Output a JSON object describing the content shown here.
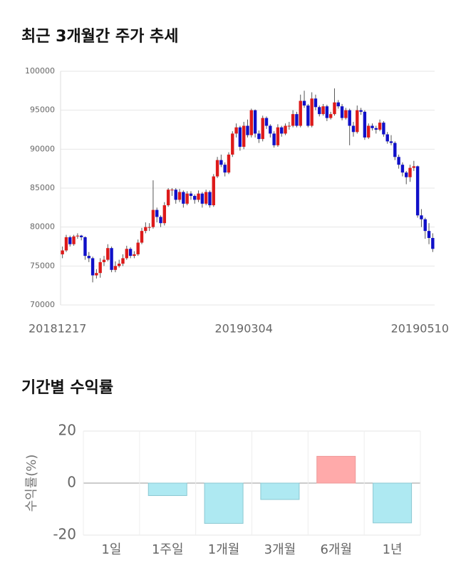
{
  "chart_data": [
    {
      "type": "candlestick",
      "title": "최근 3개월간 주가 추세",
      "categories": [
        "20181217",
        null,
        null,
        null,
        null,
        null,
        null,
        null,
        null,
        null,
        null,
        null,
        null,
        null,
        null,
        null,
        null,
        null,
        null,
        null,
        null,
        null,
        null,
        null,
        null,
        null,
        null,
        null,
        null,
        null,
        null,
        null,
        null,
        null,
        null,
        null,
        null,
        null,
        null,
        null,
        null,
        null,
        null,
        null,
        null,
        null,
        null,
        null,
        "20190304",
        null,
        null,
        null,
        null,
        null,
        null,
        null,
        null,
        null,
        null,
        null,
        null,
        null,
        null,
        null,
        null,
        null,
        null,
        null,
        null,
        null,
        null,
        null,
        null,
        null,
        null,
        null,
        null,
        null,
        null,
        null,
        null,
        null,
        null,
        null,
        null,
        null,
        null,
        null,
        null,
        null,
        null,
        null,
        null,
        null,
        null,
        null,
        null,
        null,
        "20190510"
      ],
      "open": [
        76500,
        77000,
        78700,
        77800,
        78800,
        78900,
        78700,
        76300,
        76000,
        73800,
        74100,
        75500,
        75800,
        77300,
        74500,
        75000,
        75300,
        76000,
        77200,
        76300,
        76500,
        78000,
        79500,
        80000,
        80000,
        82200,
        81300,
        80500,
        82800,
        84800,
        84800,
        83500,
        84500,
        83000,
        84300,
        84000,
        83500,
        84300,
        83000,
        84500,
        82800,
        86500,
        88600,
        88000,
        87000,
        89300,
        92000,
        92800,
        90300,
        93000,
        91800,
        95000,
        92000,
        91300,
        94000,
        93000,
        92000,
        90500,
        92800,
        92000,
        93000,
        93000,
        94500,
        93000,
        96200,
        95600,
        93000,
        96500,
        95400,
        94500,
        95500,
        94000,
        94500,
        96000,
        95500,
        94000,
        95000,
        93000,
        92200,
        95000,
        94800,
        91500,
        93000,
        92700,
        92500,
        93400,
        91900,
        91000,
        90800,
        89000,
        88000,
        87000,
        86400,
        87600,
        87800,
        81500,
        81000,
        79500,
        78600
      ],
      "high": [
        77500,
        79000,
        78900,
        79000,
        79200,
        79000,
        78800,
        76800,
        76200,
        74600,
        76000,
        76300,
        77800,
        77500,
        75600,
        75800,
        76500,
        77600,
        77400,
        76900,
        78400,
        79900,
        80600,
        80500,
        86000,
        82500,
        81500,
        83200,
        85000,
        85000,
        85000,
        84900,
        84700,
        84600,
        84600,
        84200,
        84700,
        84500,
        84800,
        84700,
        86800,
        89000,
        89300,
        88300,
        89600,
        92300,
        93300,
        93000,
        93500,
        93800,
        95200,
        95100,
        92400,
        94300,
        94200,
        93200,
        92300,
        93200,
        93000,
        93300,
        93500,
        95000,
        94800,
        97000,
        97500,
        95800,
        97300,
        97000,
        95600,
        95800,
        95700,
        94800,
        97800,
        96300,
        95800,
        95300,
        95200,
        93500,
        95600,
        95300,
        95000,
        93300,
        93300,
        93000,
        93800,
        93600,
        92200,
        91800,
        91000,
        89300,
        88300,
        87200,
        88000,
        88500,
        87900,
        82300,
        81200,
        80500,
        79200
      ],
      "low": [
        76000,
        76800,
        77500,
        77600,
        78500,
        78300,
        75800,
        75500,
        72900,
        73400,
        73500,
        75000,
        75600,
        74200,
        74200,
        74800,
        75000,
        75800,
        76000,
        76000,
        76300,
        77800,
        79200,
        79500,
        79800,
        80600,
        80000,
        80200,
        82600,
        84000,
        83000,
        83200,
        82500,
        82800,
        83500,
        83000,
        83200,
        82500,
        82800,
        82500,
        82600,
        86300,
        87700,
        86500,
        86800,
        89000,
        91500,
        89800,
        90000,
        91500,
        91500,
        91500,
        90800,
        91000,
        92600,
        91500,
        90200,
        90300,
        91600,
        91800,
        92500,
        92800,
        92800,
        92800,
        95300,
        92800,
        92800,
        95000,
        94200,
        94300,
        93600,
        93800,
        94300,
        95200,
        93700,
        93800,
        90500,
        91600,
        92000,
        94400,
        91200,
        91300,
        92400,
        92000,
        92300,
        91600,
        90700,
        90500,
        88600,
        87500,
        86500,
        85500,
        85800,
        87200,
        81200,
        80000,
        78500,
        77800,
        76800
      ],
      "close": [
        77000,
        78700,
        77800,
        78800,
        78900,
        78700,
        76300,
        76000,
        73800,
        74100,
        75500,
        75800,
        77300,
        74500,
        75000,
        75300,
        76000,
        77200,
        76300,
        76500,
        78000,
        79500,
        80000,
        80000,
        82200,
        81300,
        80500,
        82800,
        84800,
        84800,
        83500,
        84500,
        83000,
        84300,
        84000,
        83500,
        84300,
        83000,
        84500,
        82800,
        86500,
        88600,
        88000,
        87000,
        89300,
        92000,
        92800,
        90300,
        93000,
        91800,
        95000,
        92000,
        91300,
        94000,
        93000,
        92000,
        90500,
        92800,
        92000,
        93000,
        93000,
        94500,
        93000,
        96200,
        95600,
        93000,
        96500,
        95400,
        94500,
        95500,
        94000,
        94500,
        96000,
        95500,
        94000,
        95000,
        93000,
        92200,
        95000,
        94800,
        91500,
        93000,
        92700,
        92500,
        93400,
        91900,
        91000,
        90800,
        89000,
        88000,
        87000,
        86400,
        87600,
        87800,
        81500,
        81000,
        79500,
        78600,
        77200
      ],
      "up_color": "#dd1a1a",
      "down_color": "#1010c8",
      "ylim": [
        70000,
        100000
      ],
      "yticks": [
        70000,
        75000,
        80000,
        85000,
        90000,
        95000,
        100000
      ],
      "grid": true
    },
    {
      "type": "bar",
      "title": "기간별 수익률",
      "y_label": "수익률(%)",
      "categories": [
        "1일",
        "1주일",
        "1개월",
        "3개월",
        "6개월",
        "1년"
      ],
      "values": [
        0,
        -4.8,
        -15.5,
        -6.3,
        10.3,
        -15.3
      ],
      "positive_color": "#ffaaaa",
      "negative_color": "#aee9f2",
      "ylim": [
        -20,
        20
      ],
      "yticks": [
        -20,
        0,
        20
      ],
      "grid": true
    }
  ]
}
